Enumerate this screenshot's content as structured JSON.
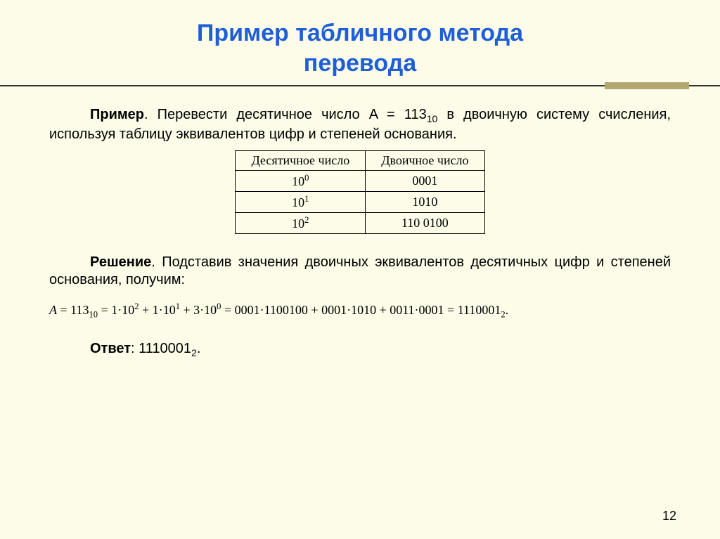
{
  "title_line1": "Пример табличного метода",
  "title_line2": "перевода",
  "intro": {
    "lead": "Пример",
    "text_before": ". Перевести десятичное число A = 113",
    "sub1": "10",
    "text_after": " в двоичную систему счисления, используя таблицу эквивалентов цифр и степеней основания."
  },
  "table": {
    "header": [
      "Десятичное число",
      "Двоичное число"
    ],
    "rows": [
      {
        "base": "10",
        "exp": "0",
        "bin": "0001"
      },
      {
        "base": "10",
        "exp": "1",
        "bin": "1010"
      },
      {
        "base": "10",
        "exp": "2",
        "bin": "110 0100"
      }
    ]
  },
  "solution": {
    "lead": "Решение",
    "text": ". Подставив значения двоичных эквивалентов десятичных цифр и степеней основания, получим:"
  },
  "formula": {
    "p1": "A",
    "eq": " = ",
    "n1": "113",
    "s1": "10",
    "p2": " = 1·10",
    "e2": "2",
    "p3": " + 1·10",
    "e3": "1",
    "p4": " + 3·10",
    "e4": "0",
    "p5": " = 0001·1100100 + 0001·1010 + 0011·0001 = 1110001",
    "s_end": "2",
    "dot": "."
  },
  "answer": {
    "lead": "Ответ",
    "text": ": 1110001",
    "sub": "2",
    "dot": "."
  },
  "page_number": "12",
  "colors": {
    "background": "#fcfce8",
    "title": "#1e5fd8",
    "rule_block": "#b3a66f"
  }
}
